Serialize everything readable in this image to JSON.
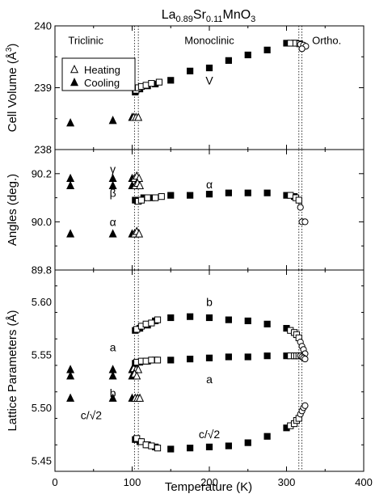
{
  "chart_data": {
    "type": "scatter",
    "title": {
      "base": "La",
      "sub1": "0.89",
      "mid": "Sr",
      "sub2": "0.11",
      "tail": "MnO",
      "sub3": "3"
    },
    "xlabel": "Temperature (K)",
    "xlim": [
      0,
      400
    ],
    "xticks": [
      "0",
      "100",
      "200",
      "300",
      "400"
    ],
    "transition_lines": [
      103,
      108,
      316,
      320
    ],
    "panels": [
      {
        "id": "volume",
        "ylabel": "Cell Volume (Å",
        "ylabel_sup": "3",
        "ylabel_close": ")",
        "ylim": [
          238,
          240
        ],
        "yticks": [
          "238",
          "239",
          "240"
        ],
        "ytick_values": [
          238,
          239,
          240
        ],
        "phase_labels": [
          {
            "text": "Triclinic",
            "x": 40,
            "y": 239.77
          },
          {
            "text": "Monoclinic",
            "x": 200,
            "y": 239.77
          },
          {
            "text": "Ortho.",
            "x": 352,
            "y": 239.77
          }
        ],
        "series_labels": [
          {
            "text": "V",
            "x": 200,
            "y": 239.12
          }
        ],
        "series": [
          {
            "key": "V_cool_tri",
            "style": "filled-triangle",
            "points": [
              [
                20,
                238.43
              ],
              [
                75,
                238.47
              ],
              [
                100,
                238.52
              ]
            ]
          },
          {
            "key": "V_heat_tri",
            "style": "open-triangle",
            "points": [
              [
                102,
                238.52
              ],
              [
                105,
                238.52
              ],
              [
                108,
                238.52
              ]
            ]
          },
          {
            "key": "V_cool_mono",
            "style": "filled-square",
            "points": [
              [
                104,
                238.93
              ],
              [
                110,
                238.98
              ],
              [
                120,
                239.03
              ],
              [
                130,
                239.06
              ],
              [
                150,
                239.12
              ],
              [
                175,
                239.27
              ],
              [
                200,
                239.32
              ],
              [
                225,
                239.44
              ],
              [
                250,
                239.53
              ],
              [
                275,
                239.61
              ],
              [
                300,
                239.72
              ],
              [
                310,
                239.72
              ]
            ]
          },
          {
            "key": "V_heat_mono",
            "style": "open-square",
            "points": [
              [
                105,
                238.96
              ],
              [
                108,
                239.0
              ],
              [
                112,
                239.02
              ],
              [
                118,
                239.04
              ],
              [
                125,
                239.07
              ],
              [
                135,
                239.09
              ],
              [
                305,
                239.72
              ],
              [
                312,
                239.72
              ],
              [
                317,
                239.71
              ]
            ]
          },
          {
            "key": "V_ortho",
            "style": "open-circle",
            "points": [
              [
                318,
                239.7
              ],
              [
                322,
                239.69
              ],
              [
                325,
                239.67
              ],
              [
                320,
                239.63
              ]
            ]
          }
        ]
      },
      {
        "id": "angles",
        "ylabel": "Angles (deg.)",
        "ylim": [
          89.8,
          90.3
        ],
        "yticks": [
          "89.8",
          "90.0",
          "90.2"
        ],
        "ytick_values": [
          89.8,
          90.0,
          90.2
        ],
        "series_labels": [
          {
            "text": "γ",
            "x": 75,
            "y": 90.22
          },
          {
            "text": "β",
            "x": 75,
            "y": 90.12
          },
          {
            "text": "α",
            "x": 75,
            "y": 90.0
          },
          {
            "text": "α",
            "x": 200,
            "y": 90.155
          }
        ],
        "series": [
          {
            "key": "gamma_cool",
            "style": "filled-triangle",
            "points": [
              [
                20,
                90.18
              ],
              [
                75,
                90.18
              ],
              [
                100,
                90.18
              ]
            ]
          },
          {
            "key": "beta_cool",
            "style": "filled-triangle",
            "points": [
              [
                20,
                90.15
              ],
              [
                75,
                90.15
              ],
              [
                100,
                90.15
              ]
            ]
          },
          {
            "key": "alpha_cool",
            "style": "filled-triangle",
            "points": [
              [
                20,
                89.95
              ],
              [
                75,
                89.95
              ],
              [
                100,
                89.95
              ]
            ]
          },
          {
            "key": "tri_heat",
            "style": "open-triangle",
            "points": [
              [
                103,
                90.18
              ],
              [
                106,
                90.19
              ],
              [
                109,
                90.18
              ],
              [
                104,
                90.15
              ],
              [
                107,
                90.16
              ],
              [
                110,
                90.15
              ],
              [
                103,
                89.95
              ],
              [
                106,
                89.96
              ],
              [
                109,
                89.95
              ]
            ]
          },
          {
            "key": "alpha_mono_cool",
            "style": "filled-square",
            "points": [
              [
                104,
                90.09
              ],
              [
                115,
                90.1
              ],
              [
                125,
                90.1
              ],
              [
                150,
                90.11
              ],
              [
                175,
                90.11
              ],
              [
                200,
                90.115
              ],
              [
                225,
                90.12
              ],
              [
                250,
                90.12
              ],
              [
                275,
                90.12
              ],
              [
                300,
                90.11
              ],
              [
                310,
                90.105
              ]
            ]
          },
          {
            "key": "alpha_mono_heat",
            "style": "open-square",
            "points": [
              [
                108,
                90.085
              ],
              [
                112,
                90.09
              ],
              [
                120,
                90.1
              ],
              [
                130,
                90.1
              ],
              [
                138,
                90.105
              ],
              [
                305,
                90.11
              ],
              [
                312,
                90.1
              ],
              [
                316,
                90.09
              ]
            ]
          },
          {
            "key": "alpha_ortho",
            "style": "open-circle",
            "points": [
              [
                318,
                90.06
              ],
              [
                320,
                90.0
              ],
              [
                324,
                90.0
              ]
            ]
          }
        ]
      },
      {
        "id": "lattice",
        "ylabel": "Lattice Parameters (Å)",
        "ylim": [
          5.44,
          5.63
        ],
        "yticks": [
          "5.45",
          "5.50",
          "5.55",
          "5.60"
        ],
        "ytick_values": [
          5.45,
          5.5,
          5.55,
          5.6
        ],
        "series_labels": [
          {
            "text": "b",
            "x": 200,
            "y": 5.6
          },
          {
            "text": "a",
            "x": 200,
            "y": 5.527
          },
          {
            "text": "c/√2",
            "x": 200,
            "y": 5.475
          },
          {
            "text": "a",
            "x": 75,
            "y": 5.557
          },
          {
            "text": "b",
            "x": 75,
            "y": 5.514
          },
          {
            "text": "c/√2",
            "x": 47,
            "y": 5.493
          }
        ],
        "series": [
          {
            "key": "tri_cool",
            "style": "filled-triangle",
            "points": [
              [
                20,
                5.536
              ],
              [
                75,
                5.536
              ],
              [
                100,
                5.536
              ],
              [
                20,
                5.53
              ],
              [
                75,
                5.53
              ],
              [
                100,
                5.53
              ],
              [
                20,
                5.509
              ],
              [
                75,
                5.509
              ],
              [
                100,
                5.509
              ]
            ]
          },
          {
            "key": "tri_heat",
            "style": "open-triangle",
            "points": [
              [
                102,
                5.537
              ],
              [
                105,
                5.536
              ],
              [
                108,
                5.536
              ],
              [
                103,
                5.532
              ],
              [
                106,
                5.53
              ],
              [
                104,
                5.509
              ],
              [
                107,
                5.509
              ],
              [
                110,
                5.509
              ]
            ]
          },
          {
            "key": "b_mono_cool",
            "style": "filled-square",
            "points": [
              [
                104,
                5.573
              ],
              [
                110,
                5.575
              ],
              [
                120,
                5.578
              ],
              [
                130,
                5.582
              ],
              [
                150,
                5.585
              ],
              [
                175,
                5.586
              ],
              [
                200,
                5.585
              ],
              [
                225,
                5.583
              ],
              [
                250,
                5.582
              ],
              [
                275,
                5.579
              ],
              [
                300,
                5.575
              ]
            ]
          },
          {
            "key": "a_mono_cool",
            "style": "filled-square",
            "points": [
              [
                104,
                5.542
              ],
              [
                110,
                5.543
              ],
              [
                120,
                5.544
              ],
              [
                130,
                5.545
              ],
              [
                150,
                5.545
              ],
              [
                175,
                5.546
              ],
              [
                200,
                5.547
              ],
              [
                225,
                5.548
              ],
              [
                250,
                5.548
              ],
              [
                275,
                5.549
              ],
              [
                300,
                5.549
              ]
            ]
          },
          {
            "key": "c_mono_cool",
            "style": "filled-square",
            "points": [
              [
                104,
                5.47
              ],
              [
                110,
                5.468
              ],
              [
                120,
                5.465
              ],
              [
                130,
                5.463
              ],
              [
                150,
                5.461
              ],
              [
                175,
                5.462
              ],
              [
                200,
                5.463
              ],
              [
                225,
                5.464
              ],
              [
                250,
                5.467
              ],
              [
                275,
                5.473
              ],
              [
                300,
                5.481
              ]
            ]
          },
          {
            "key": "mono_heat",
            "style": "open-square",
            "points": [
              [
                106,
                5.574
              ],
              [
                112,
                5.577
              ],
              [
                118,
                5.579
              ],
              [
                125,
                5.58
              ],
              [
                133,
                5.583
              ],
              [
                106,
                5.543
              ],
              [
                112,
                5.544
              ],
              [
                118,
                5.544
              ],
              [
                125,
                5.545
              ],
              [
                133,
                5.545
              ],
              [
                106,
                5.471
              ],
              [
                112,
                5.468
              ],
              [
                118,
                5.465
              ],
              [
                125,
                5.464
              ],
              [
                133,
                5.462
              ],
              [
                305,
                5.573
              ],
              [
                310,
                5.571
              ],
              [
                313,
                5.569
              ],
              [
                316,
                5.566
              ],
              [
                305,
                5.549
              ],
              [
                310,
                5.549
              ],
              [
                313,
                5.549
              ],
              [
                316,
                5.549
              ],
              [
                305,
                5.483
              ],
              [
                310,
                5.485
              ],
              [
                313,
                5.488
              ],
              [
                316,
                5.49
              ]
            ]
          },
          {
            "key": "ortho",
            "style": "open-circle",
            "points": [
              [
                318,
                5.562
              ],
              [
                320,
                5.558
              ],
              [
                322,
                5.555
              ],
              [
                324,
                5.551
              ],
              [
                318,
                5.549
              ],
              [
                320,
                5.548
              ],
              [
                322,
                5.547
              ],
              [
                324,
                5.546
              ],
              [
                318,
                5.494
              ],
              [
                320,
                5.497
              ],
              [
                322,
                5.5
              ],
              [
                324,
                5.502
              ]
            ]
          }
        ]
      }
    ],
    "legend": {
      "placement": "top-left",
      "entries": [
        {
          "label": "Heating",
          "style": "open-triangle"
        },
        {
          "label": "Cooling",
          "style": "filled-triangle"
        }
      ]
    }
  }
}
